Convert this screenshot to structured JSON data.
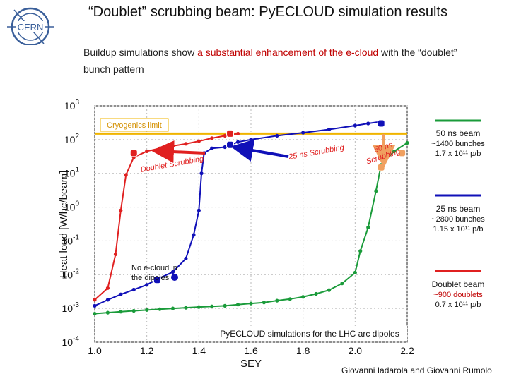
{
  "slide": {
    "title": "“Doublet” scrubbing beam: PyECLOUD simulation results",
    "intro_prefix": "Buildup simulations show ",
    "intro_highlight": "a substantial enhancement of the e-cloud",
    "intro_suffix": " with the “doublet”  bunch pattern",
    "logo_text": "CERN",
    "credit": "Giovanni Iadarola and Giovanni Rumolo"
  },
  "legend": [
    {
      "name": "50 ns beam",
      "line1": "~1400 bunches",
      "line2": "1.7 x 10¹¹ p/b",
      "color": "#1a9b3a"
    },
    {
      "name": "25 ns beam",
      "line1": "~2800 bunches",
      "line2": "1.15 x 10¹¹ p/b",
      "color": "#1010b8"
    },
    {
      "name": "Doublet beam",
      "line1": "~900 doublets",
      "line2": "0.7 x 10¹¹ p/b",
      "color": "#e02020"
    }
  ],
  "annotations": {
    "cryo": "Cryogenics limit",
    "doublet_scrub": "Doublet Scrubbing",
    "ns25_scrub": "25 ns Scrubbing",
    "ns50_scrub_1": "50 ns",
    "ns50_scrub_2": "Scrubbing",
    "no_ecloud_1": "No e-cloud in",
    "no_ecloud_2": "the dipoles",
    "sim_note": "PyECLOUD simulations for the LHC arc dipoles"
  },
  "chart_data": {
    "type": "line",
    "xlabel": "SEY",
    "ylabel": "Heat load [W/hc/beam]",
    "xlim": [
      1.0,
      2.2
    ],
    "ylim_log10": [
      -4,
      3
    ],
    "yscale": "log",
    "xticks": [
      "1.0",
      "1.2",
      "1.4",
      "1.6",
      "1.8",
      "2.0",
      "2.2"
    ],
    "yticks": [
      {
        "base": "10",
        "exp": "3"
      },
      {
        "base": "10",
        "exp": "2"
      },
      {
        "base": "10",
        "exp": "1"
      },
      {
        "base": "10",
        "exp": "0"
      },
      {
        "base": "10",
        "exp": "-1"
      },
      {
        "base": "10",
        "exp": "-2"
      },
      {
        "base": "10",
        "exp": "-3"
      },
      {
        "base": "10",
        "exp": "-4"
      }
    ],
    "cryogenic_limit": 150,
    "series": [
      {
        "name": "50 ns beam",
        "color": "#1a9b3a",
        "x": [
          1.0,
          1.05,
          1.1,
          1.15,
          1.2,
          1.25,
          1.3,
          1.35,
          1.4,
          1.45,
          1.5,
          1.55,
          1.6,
          1.65,
          1.7,
          1.75,
          1.8,
          1.85,
          1.9,
          1.95,
          2.0,
          2.02,
          2.05,
          2.08,
          2.1,
          2.15,
          2.2
        ],
        "y": [
          0.0007,
          0.00075,
          0.0008,
          0.00085,
          0.0009,
          0.00095,
          0.001,
          0.00105,
          0.0011,
          0.00115,
          0.0012,
          0.0013,
          0.0014,
          0.0015,
          0.0017,
          0.0019,
          0.0022,
          0.0027,
          0.0035,
          0.0055,
          0.0115,
          0.05,
          0.25,
          3.0,
          18,
          45,
          80
        ]
      },
      {
        "name": "25 ns beam",
        "color": "#1010b8",
        "x": [
          1.0,
          1.05,
          1.1,
          1.15,
          1.2,
          1.25,
          1.3,
          1.35,
          1.38,
          1.4,
          1.41,
          1.42,
          1.45,
          1.5,
          1.55,
          1.6,
          1.7,
          1.8,
          1.9,
          2.0,
          2.05,
          2.1
        ],
        "y": [
          0.0012,
          0.0018,
          0.0026,
          0.0036,
          0.005,
          0.008,
          0.012,
          0.03,
          0.15,
          0.8,
          10,
          40,
          55,
          60,
          85,
          100,
          130,
          160,
          200,
          260,
          300,
          340
        ]
      },
      {
        "name": "Doublet beam",
        "color": "#e02020",
        "x": [
          1.0,
          1.05,
          1.08,
          1.1,
          1.12,
          1.15,
          1.2,
          1.25,
          1.3,
          1.35,
          1.4,
          1.45,
          1.5,
          1.55
        ],
        "y": [
          0.0018,
          0.004,
          0.04,
          0.8,
          9,
          30,
          45,
          55,
          65,
          75,
          90,
          110,
          130,
          150
        ]
      }
    ],
    "markers": [
      {
        "series": "Doublet beam",
        "x": 1.15,
        "y": 40,
        "color": "#e02020"
      },
      {
        "series": "Doublet beam",
        "x": 1.52,
        "y": 150,
        "color": "#e02020"
      },
      {
        "series": "25 ns beam",
        "x": 1.52,
        "y": 70,
        "color": "#1010b8"
      },
      {
        "series": "25 ns beam",
        "x": 2.1,
        "y": 300,
        "color": "#1010b8"
      },
      {
        "series": "25 ns beam",
        "x": 1.24,
        "y": 0.007,
        "color": "#1010b8"
      },
      {
        "series": "50 ns beam",
        "x": 2.1,
        "y": 15,
        "color": "#f0a060"
      },
      {
        "series": "50 ns beam",
        "x": 2.18,
        "y": 40,
        "color": "#f0a060"
      }
    ]
  }
}
